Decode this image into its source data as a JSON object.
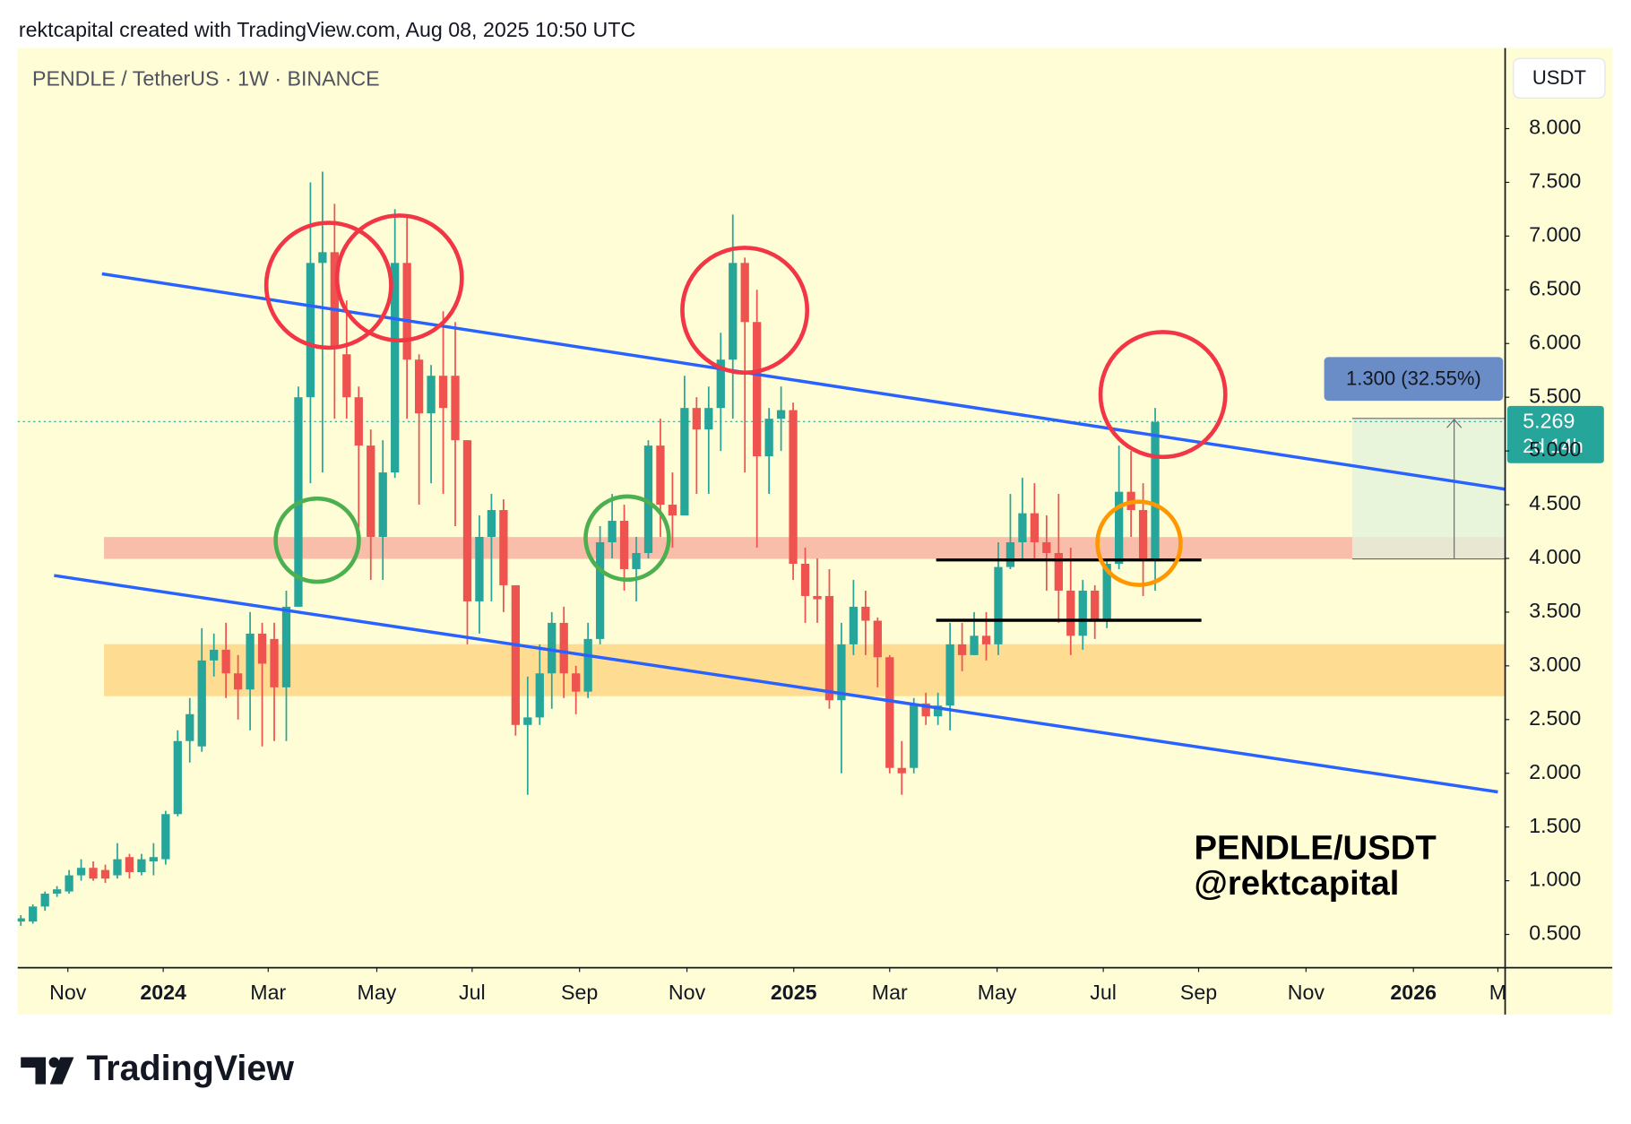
{
  "header": "rektcapital created with TradingView.com, Aug 08, 2025 10:50 UTC",
  "footer": "TradingView",
  "chart_data": {
    "type": "candlestick",
    "title": "PENDLE / TetherUS · 1W · BINANCE",
    "currency": "USDT",
    "annotations": [
      "PENDLE/USDT",
      "@rektcapital"
    ],
    "measure_label": "1.300 (32.55%)",
    "price_label": "5.269",
    "countdown_label": "2d 14h",
    "colors": {
      "up": "#26a69a",
      "down": "#ef5350"
    },
    "x": [
      0,
      1,
      2,
      3,
      4,
      5,
      6,
      7,
      8,
      9,
      10,
      11,
      12,
      13,
      14,
      15,
      16,
      17,
      18,
      19,
      20,
      21,
      22,
      23,
      24,
      25,
      26,
      27,
      28,
      29,
      30,
      31,
      32,
      33,
      34,
      35,
      36,
      37,
      38,
      39,
      40,
      41,
      42,
      43,
      44,
      45,
      46,
      47,
      48,
      49,
      50,
      51,
      52,
      53,
      54,
      55,
      56,
      57,
      58,
      59,
      60,
      61,
      62,
      63,
      64,
      65,
      66,
      67,
      68,
      69,
      70,
      71,
      72,
      73,
      74,
      75,
      76,
      77,
      78,
      79,
      80,
      81,
      82,
      83,
      84,
      85,
      86,
      87,
      88,
      89,
      90,
      91,
      92,
      93,
      94
    ],
    "open": [
      0.62,
      0.62,
      0.76,
      0.88,
      0.9,
      1.05,
      1.12,
      1.1,
      1.05,
      1.22,
      1.08,
      1.18,
      1.2,
      1.62,
      2.3,
      2.25,
      3.05,
      3.15,
      2.93,
      2.78,
      3.3,
      3.25,
      2.8,
      3.55,
      5.5,
      6.75,
      6.85,
      5.9,
      5.5,
      5.05,
      4.2,
      4.8,
      6.75,
      5.85,
      5.35,
      5.7,
      5.7,
      5.1,
      3.6,
      4.2,
      4.45,
      3.75,
      2.45,
      2.52,
      2.93,
      3.4,
      2.93,
      2.76,
      3.25,
      4.15,
      4.35,
      3.9,
      4.05,
      5.05,
      4.5,
      4.4,
      5.4,
      5.2,
      5.4,
      5.85,
      6.75,
      6.2,
      4.95,
      5.3,
      5.38,
      3.95,
      3.65,
      3.65,
      2.68,
      3.2,
      3.55,
      3.42,
      3.08,
      2.05,
      2.05,
      2.65,
      2.53,
      2.63,
      3.2,
      3.1,
      3.28,
      3.2,
      3.92,
      4.15,
      4.42,
      4.15,
      4.05,
      3.7,
      3.28,
      3.7,
      3.42,
      3.95,
      4.62,
      4.45,
      3.98
    ],
    "high": [
      0.68,
      0.78,
      0.9,
      0.95,
      1.1,
      1.2,
      1.18,
      1.15,
      1.35,
      1.25,
      1.25,
      1.35,
      1.65,
      2.4,
      2.7,
      3.35,
      3.3,
      3.4,
      3.1,
      3.5,
      3.4,
      3.4,
      3.7,
      5.6,
      7.5,
      7.6,
      7.3,
      6.4,
      5.6,
      5.2,
      5.1,
      7.25,
      7.2,
      5.9,
      5.8,
      6.3,
      6.2,
      5.1,
      4.4,
      4.6,
      4.55,
      3.75,
      2.9,
      3.2,
      3.5,
      3.55,
      3.0,
      3.4,
      4.3,
      4.6,
      4.5,
      4.2,
      5.1,
      5.3,
      4.8,
      5.7,
      5.5,
      5.6,
      6.1,
      7.2,
      6.8,
      6.5,
      5.4,
      5.6,
      5.45,
      4.1,
      4.0,
      3.9,
      3.4,
      3.8,
      3.7,
      3.45,
      3.1,
      2.3,
      2.7,
      2.75,
      2.75,
      3.4,
      3.4,
      3.5,
      3.5,
      4.15,
      4.6,
      4.75,
      4.7,
      4.4,
      4.6,
      4.1,
      3.8,
      3.75,
      4.0,
      5.05,
      5.0,
      4.7,
      5.4
    ],
    "low": [
      0.58,
      0.6,
      0.72,
      0.85,
      0.88,
      1.0,
      1.0,
      0.98,
      1.02,
      1.02,
      1.05,
      1.05,
      1.15,
      1.6,
      2.1,
      2.2,
      2.9,
      2.7,
      2.5,
      2.4,
      2.25,
      2.3,
      2.3,
      3.55,
      4.7,
      4.8,
      5.3,
      5.3,
      4.1,
      3.8,
      3.8,
      4.75,
      5.3,
      4.5,
      4.7,
      4.6,
      4.3,
      3.2,
      3.3,
      3.6,
      3.5,
      2.35,
      1.8,
      2.45,
      2.6,
      2.7,
      2.55,
      2.7,
      3.2,
      4.0,
      3.7,
      3.6,
      4.0,
      4.2,
      4.1,
      4.4,
      4.6,
      4.6,
      5.0,
      5.3,
      4.8,
      4.1,
      4.6,
      5.0,
      3.8,
      3.4,
      3.4,
      2.6,
      2.0,
      3.1,
      3.1,
      2.8,
      2.0,
      1.8,
      2.0,
      2.45,
      2.45,
      2.4,
      2.95,
      3.1,
      3.05,
      3.1,
      3.9,
      4.0,
      4.0,
      3.7,
      3.4,
      3.1,
      3.15,
      3.25,
      3.35,
      3.9,
      4.2,
      3.65,
      3.7
    ],
    "close": [
      0.65,
      0.76,
      0.88,
      0.92,
      1.05,
      1.12,
      1.02,
      1.02,
      1.2,
      1.08,
      1.2,
      1.22,
      1.62,
      2.3,
      2.55,
      3.05,
      3.15,
      2.93,
      2.78,
      3.3,
      3.02,
      2.8,
      3.55,
      5.5,
      6.75,
      6.85,
      5.95,
      5.5,
      5.05,
      4.2,
      4.8,
      6.75,
      5.85,
      5.35,
      5.7,
      5.4,
      5.1,
      3.6,
      4.2,
      4.45,
      3.75,
      2.45,
      2.52,
      2.93,
      3.4,
      2.93,
      2.76,
      3.25,
      4.15,
      4.35,
      3.9,
      4.05,
      5.05,
      4.5,
      4.4,
      5.4,
      5.2,
      5.4,
      5.85,
      6.75,
      6.2,
      4.95,
      5.3,
      5.38,
      3.95,
      3.65,
      3.62,
      2.68,
      3.2,
      3.55,
      3.42,
      3.08,
      2.05,
      2.0,
      2.65,
      2.53,
      2.63,
      3.2,
      3.1,
      3.28,
      3.2,
      3.92,
      4.15,
      4.42,
      4.15,
      4.05,
      3.7,
      3.28,
      3.7,
      3.42,
      3.95,
      4.62,
      4.45,
      3.98,
      5.269
    ],
    "xlim": [
      -0.26,
      123
    ],
    "xticks": [
      {
        "value": 3.9,
        "label": "Nov"
      },
      {
        "value": 11.8,
        "label": "2024"
      },
      {
        "value": 20.5,
        "label": "Mar"
      },
      {
        "value": 29.5,
        "label": "May"
      },
      {
        "value": 37.4,
        "label": "Jul"
      },
      {
        "value": 46.3,
        "label": "Sep"
      },
      {
        "value": 55.2,
        "label": "Nov"
      },
      {
        "value": 64.05,
        "label": "2025"
      },
      {
        "value": 72,
        "label": "Mar"
      },
      {
        "value": 80.9,
        "label": "May"
      },
      {
        "value": 89.7,
        "label": "Jul"
      },
      {
        "value": 97.6,
        "label": "Sep"
      },
      {
        "value": 106.5,
        "label": "Nov"
      },
      {
        "value": 115.4,
        "label": "2026"
      },
      {
        "value": 122.4,
        "label": "M"
      }
    ],
    "ylim": [
      0.19,
      8.75
    ],
    "yticks": [
      {
        "value": 0.5,
        "label": "0.500"
      },
      {
        "value": 1,
        "label": "1.000"
      },
      {
        "value": 1.5,
        "label": "1.500"
      },
      {
        "value": 2,
        "label": "2.000"
      },
      {
        "value": 2.5,
        "label": "2.500"
      },
      {
        "value": 3,
        "label": "3.000"
      },
      {
        "value": 3.5,
        "label": "3.500"
      },
      {
        "value": 4,
        "label": "4.000"
      },
      {
        "value": 4.5,
        "label": "4.500"
      },
      {
        "value": 5,
        "label": "5.000"
      },
      {
        "value": 5.5,
        "label": "5.500"
      },
      {
        "value": 6,
        "label": "6.000"
      },
      {
        "value": 6.5,
        "label": "6.500"
      },
      {
        "value": 7,
        "label": "7.000"
      },
      {
        "value": 7.5,
        "label": "7.500"
      },
      {
        "value": 8,
        "label": "8.000"
      }
    ]
  }
}
